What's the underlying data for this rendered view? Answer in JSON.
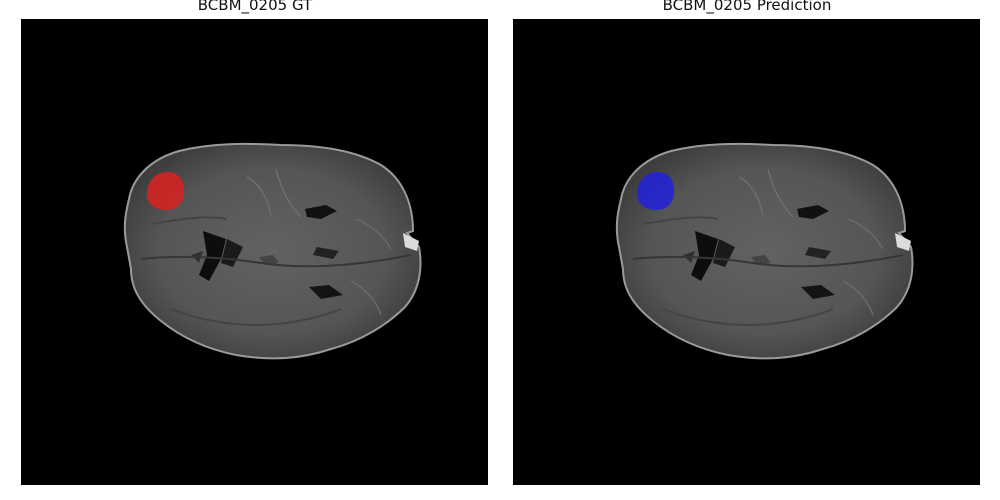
{
  "panels": [
    {
      "title": "BCBM_0205 GT",
      "mask_color": "#e02020",
      "mask_label": "ground-truth-mask"
    },
    {
      "title": "BCBM_0205 Prediction",
      "mask_color": "#2020e0",
      "mask_label": "prediction-mask"
    }
  ],
  "colors": {
    "background": "#000000",
    "tissue": "#575757"
  }
}
